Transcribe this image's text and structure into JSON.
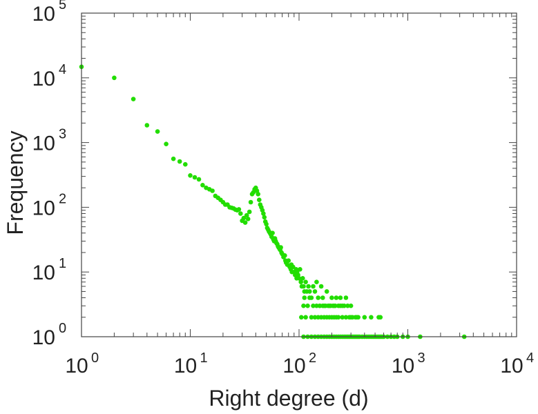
{
  "chart_data": {
    "type": "scatter",
    "title": "",
    "xlabel": "Right degree (d)",
    "ylabel": "Frequency",
    "x_scale": "log",
    "y_scale": "log",
    "xlim": [
      1,
      10000
    ],
    "ylim": [
      1,
      100000
    ],
    "grid": false,
    "legend": "none",
    "x_tick_labels": [
      {
        "base": "10",
        "exp": "0",
        "value": 1
      },
      {
        "base": "10",
        "exp": "1",
        "value": 10
      },
      {
        "base": "10",
        "exp": "2",
        "value": 100
      },
      {
        "base": "10",
        "exp": "3",
        "value": 1000
      },
      {
        "base": "10",
        "exp": "4",
        "value": 10000
      }
    ],
    "y_tick_labels": [
      {
        "base": "10",
        "exp": "0",
        "value": 1
      },
      {
        "base": "10",
        "exp": "1",
        "value": 10
      },
      {
        "base": "10",
        "exp": "2",
        "value": 100
      },
      {
        "base": "10",
        "exp": "3",
        "value": 1000
      },
      {
        "base": "10",
        "exp": "4",
        "value": 10000
      },
      {
        "base": "10",
        "exp": "5",
        "value": 100000
      }
    ],
    "series": [
      {
        "color": "#22dd00",
        "points": [
          [
            1,
            14800
          ],
          [
            2,
            10000
          ],
          [
            3,
            4700
          ],
          [
            4,
            1850
          ],
          [
            5,
            1480
          ],
          [
            6,
            950
          ],
          [
            7,
            560
          ],
          [
            8,
            510
          ],
          [
            9,
            460
          ],
          [
            10,
            310
          ],
          [
            11,
            290
          ],
          [
            12,
            270
          ],
          [
            13,
            220
          ],
          [
            14,
            200
          ],
          [
            15,
            190
          ],
          [
            16,
            180
          ],
          [
            17,
            150
          ],
          [
            18,
            140
          ],
          [
            19,
            130
          ],
          [
            20,
            120
          ],
          [
            21,
            110
          ],
          [
            22,
            110
          ],
          [
            23,
            100
          ],
          [
            24,
            98
          ],
          [
            25,
            96
          ],
          [
            26,
            92
          ],
          [
            27,
            90
          ],
          [
            28,
            93
          ],
          [
            29,
            80
          ],
          [
            30,
            62
          ],
          [
            31,
            68
          ],
          [
            32,
            58
          ],
          [
            33,
            75
          ],
          [
            34,
            66
          ],
          [
            35,
            85
          ],
          [
            36,
            120
          ],
          [
            37,
            160
          ],
          [
            38,
            170
          ],
          [
            39,
            190
          ],
          [
            40,
            200
          ],
          [
            41,
            180
          ],
          [
            42,
            160
          ],
          [
            43,
            130
          ],
          [
            44,
            110
          ],
          [
            45,
            100
          ],
          [
            46,
            90
          ],
          [
            47,
            80
          ],
          [
            48,
            70
          ],
          [
            49,
            60
          ],
          [
            50,
            55
          ],
          [
            51,
            48
          ],
          [
            52,
            45
          ],
          [
            53,
            42
          ],
          [
            54,
            40
          ],
          [
            55,
            38
          ],
          [
            56,
            35
          ],
          [
            57,
            40
          ],
          [
            58,
            32
          ],
          [
            59,
            30
          ],
          [
            60,
            33
          ],
          [
            61,
            30
          ],
          [
            62,
            28
          ],
          [
            63,
            27
          ],
          [
            64,
            25
          ],
          [
            65,
            24
          ],
          [
            66,
            23
          ],
          [
            67,
            22
          ],
          [
            68,
            24
          ],
          [
            69,
            20
          ],
          [
            70,
            19
          ],
          [
            72,
            17
          ],
          [
            74,
            18
          ],
          [
            75,
            15
          ],
          [
            76,
            14
          ],
          [
            78,
            13
          ],
          [
            80,
            15
          ],
          [
            82,
            12
          ],
          [
            84,
            11
          ],
          [
            85,
            13
          ],
          [
            86,
            10
          ],
          [
            88,
            12
          ],
          [
            90,
            10
          ],
          [
            92,
            9
          ],
          [
            94,
            11
          ],
          [
            95,
            8
          ],
          [
            96,
            10
          ],
          [
            98,
            9
          ],
          [
            100,
            8
          ],
          [
            102,
            11
          ],
          [
            104,
            7
          ],
          [
            106,
            6
          ],
          [
            108,
            8
          ],
          [
            110,
            6
          ],
          [
            112,
            5
          ],
          [
            115,
            7
          ],
          [
            118,
            5
          ],
          [
            122,
            6
          ],
          [
            125,
            5
          ],
          [
            130,
            4
          ],
          [
            135,
            6
          ],
          [
            140,
            5
          ],
          [
            145,
            7
          ],
          [
            150,
            4
          ],
          [
            155,
            3
          ],
          [
            160,
            6
          ],
          [
            165,
            4
          ],
          [
            170,
            3
          ],
          [
            180,
            5
          ],
          [
            190,
            3
          ],
          [
            200,
            4
          ],
          [
            210,
            3
          ],
          [
            220,
            4
          ],
          [
            230,
            3
          ],
          [
            240,
            4
          ],
          [
            250,
            3
          ],
          [
            270,
            4
          ],
          [
            300,
            3
          ],
          [
            350,
            2
          ],
          [
            400,
            2
          ],
          [
            460,
            2
          ],
          [
            540,
            2
          ],
          [
            560,
            2
          ],
          [
            105,
            2
          ],
          [
            110,
            3
          ],
          [
            112,
            4
          ],
          [
            115,
            2
          ],
          [
            120,
            3
          ],
          [
            125,
            4
          ],
          [
            130,
            2
          ],
          [
            135,
            3
          ],
          [
            140,
            2
          ],
          [
            145,
            3
          ],
          [
            150,
            2
          ],
          [
            155,
            3
          ],
          [
            160,
            2
          ],
          [
            165,
            3
          ],
          [
            170,
            2
          ],
          [
            175,
            3
          ],
          [
            180,
            2
          ],
          [
            185,
            3
          ],
          [
            190,
            2
          ],
          [
            195,
            3
          ],
          [
            200,
            2
          ],
          [
            205,
            3
          ],
          [
            210,
            2
          ],
          [
            215,
            3
          ],
          [
            220,
            2
          ],
          [
            230,
            2
          ],
          [
            240,
            3
          ],
          [
            250,
            2
          ],
          [
            260,
            3
          ],
          [
            270,
            2
          ],
          [
            280,
            3
          ],
          [
            290,
            2
          ],
          [
            300,
            2
          ],
          [
            310,
            2
          ],
          [
            330,
            2
          ],
          [
            340,
            2
          ],
          [
            110,
            1
          ],
          [
            120,
            1
          ],
          [
            130,
            1
          ],
          [
            140,
            1
          ],
          [
            150,
            1
          ],
          [
            160,
            1
          ],
          [
            170,
            1
          ],
          [
            180,
            1
          ],
          [
            190,
            1
          ],
          [
            200,
            1
          ],
          [
            210,
            1
          ],
          [
            220,
            1
          ],
          [
            230,
            1
          ],
          [
            240,
            1
          ],
          [
            250,
            1
          ],
          [
            260,
            1
          ],
          [
            270,
            1
          ],
          [
            280,
            1
          ],
          [
            290,
            1
          ],
          [
            300,
            1
          ],
          [
            310,
            1
          ],
          [
            320,
            1
          ],
          [
            330,
            1
          ],
          [
            340,
            1
          ],
          [
            350,
            1
          ],
          [
            360,
            1
          ],
          [
            380,
            1
          ],
          [
            400,
            1
          ],
          [
            420,
            1
          ],
          [
            440,
            1
          ],
          [
            460,
            1
          ],
          [
            480,
            1
          ],
          [
            500,
            1
          ],
          [
            520,
            1
          ],
          [
            540,
            1
          ],
          [
            560,
            1
          ],
          [
            580,
            1
          ],
          [
            600,
            1
          ],
          [
            650,
            1
          ],
          [
            700,
            1
          ],
          [
            750,
            1
          ],
          [
            800,
            1
          ],
          [
            900,
            1
          ],
          [
            1000,
            1
          ],
          [
            1300,
            1
          ],
          [
            3300,
            1
          ]
        ]
      }
    ]
  }
}
